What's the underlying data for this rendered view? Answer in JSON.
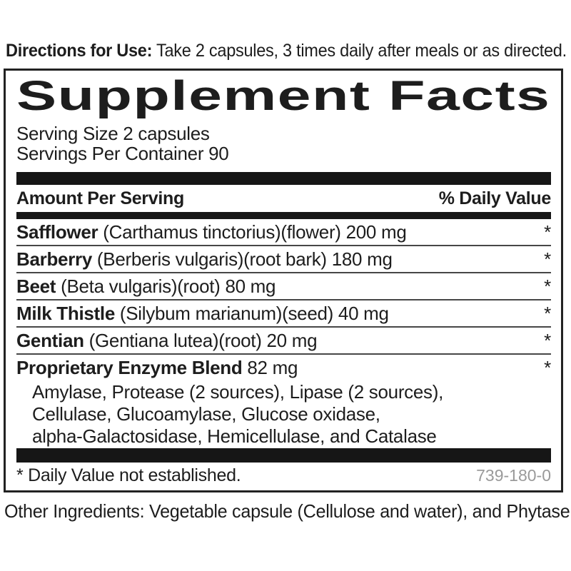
{
  "colors": {
    "text": "#1d1d1d",
    "bar": "#161616",
    "border": "#222222",
    "code_gray": "#9a9a9a"
  },
  "directions": {
    "label": "Directions for Use:",
    "text": " Take 2 capsules, 3 times daily after meals or as directed."
  },
  "panel": {
    "title": "Supplement Facts",
    "serving_size": "Serving Size 2 capsules",
    "servings_per_container": "Servings Per Container 90",
    "header": {
      "amount": "Amount Per Serving",
      "daily_value": "% Daily Value"
    },
    "rows": [
      {
        "name": "Safflower",
        "detail": " (Carthamus tinctorius)(flower) 200 mg",
        "dv": "*"
      },
      {
        "name": "Barberry",
        "detail": " (Berberis vulgaris)(root bark) 180 mg",
        "dv": "*"
      },
      {
        "name": "Beet",
        "detail": " (Beta vulgaris)(root) 80 mg",
        "dv": "*"
      },
      {
        "name": "Milk Thistle",
        "detail": " (Silybum marianum)(seed) 40 mg",
        "dv": "*"
      },
      {
        "name": "Gentian",
        "detail": " (Gentiana lutea)(root) 20 mg",
        "dv": "*"
      }
    ],
    "blend": {
      "name": "Proprietary Enzyme Blend",
      "detail": " 82 mg",
      "dv": "*",
      "lines": [
        "Amylase, Protease (2 sources), Lipase (2 sources),",
        "Cellulase,  Glucoamylase, Glucose oxidase,",
        "alpha-Galactosidase, Hemicellulase, and Catalase"
      ]
    },
    "footnote": "* Daily Value not established.",
    "code": "739-180-0"
  },
  "other_ingredients": {
    "label": "Other Ingredients:",
    "text": "  Vegetable capsule (Cellulose and water), and Phytase"
  }
}
